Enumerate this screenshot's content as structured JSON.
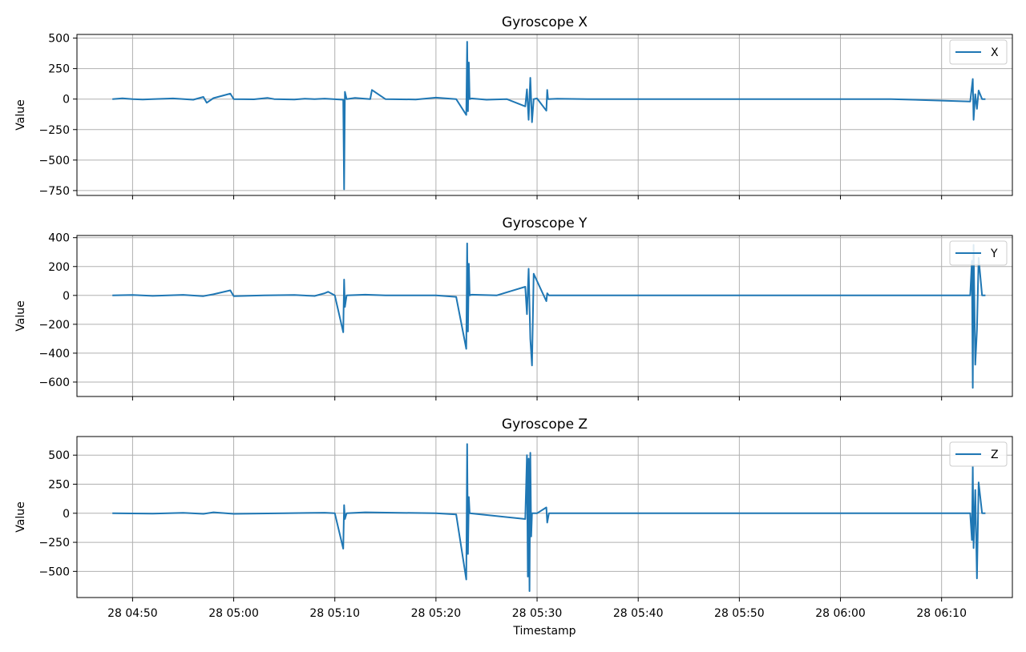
{
  "chart_data": {
    "type": "line",
    "shared_x": true,
    "xlabel": "Timestamp",
    "x_ticks": [
      "28 04:50",
      "28 05:00",
      "28 05:10",
      "28 05:20",
      "28 05:30",
      "28 05:40",
      "28 05:50",
      "28 06:00",
      "28 06:10"
    ],
    "xlim": [
      "04:44:30",
      "06:17:00"
    ],
    "grid": true,
    "line_color": "#1f77b4",
    "legend_position": "upper right",
    "panels": [
      {
        "title": "Gyroscope X",
        "ylabel": "Value",
        "ylim": [
          -790,
          530
        ],
        "y_ticks": [
          500,
          250,
          0,
          -250,
          -500,
          -750
        ],
        "y_tick_labels": [
          "500",
          "250",
          "0",
          "−250",
          "−500",
          "−750"
        ],
        "series": [
          {
            "name": "X",
            "x": [
              "04:48:00",
              "04:49:00",
              "04:50:00",
              "04:51:00",
              "04:52:00",
              "04:54:00",
              "04:56:00",
              "04:57:00",
              "04:57:20",
              "04:58:00",
              "04:59:40",
              "05:00:00",
              "05:02:00",
              "05:03:20",
              "05:04:00",
              "05:06:00",
              "05:07:00",
              "05:08:00",
              "05:09:00",
              "05:10:50",
              "05:10:55",
              "05:11:00",
              "05:11:10",
              "05:12:00",
              "05:13:30",
              "05:13:40",
              "05:15:00",
              "05:18:00",
              "05:20:00",
              "05:22:00",
              "05:23:00",
              "05:23:05",
              "05:23:10",
              "05:23:15",
              "05:23:20",
              "05:23:30",
              "05:25:00",
              "05:27:00",
              "05:28:50",
              "05:29:00",
              "05:29:10",
              "05:29:20",
              "05:29:30",
              "05:29:40",
              "05:30:00",
              "05:30:55",
              "05:31:00",
              "05:31:05",
              "05:32:00",
              "05:35:00",
              "05:45:00",
              "05:55:00",
              "06:05:00",
              "06:12:50",
              "06:13:05",
              "06:13:10",
              "06:13:20",
              "06:13:30",
              "06:13:40",
              "06:14:00",
              "06:14:20"
            ],
            "y": [
              0,
              6,
              0,
              -3,
              0,
              5,
              -5,
              18,
              -30,
              8,
              45,
              0,
              -2,
              10,
              0,
              -4,
              3,
              0,
              4,
              -5,
              -740,
              60,
              0,
              10,
              0,
              75,
              0,
              -3,
              12,
              0,
              -130,
              470,
              -100,
              300,
              0,
              5,
              -5,
              0,
              -60,
              80,
              -170,
              175,
              -190,
              0,
              5,
              -95,
              75,
              0,
              3,
              0,
              0,
              0,
              0,
              -20,
              165,
              -170,
              40,
              -80,
              70,
              0,
              0
            ]
          }
        ]
      },
      {
        "title": "Gyroscope Y",
        "ylabel": "Value",
        "ylim": [
          -700,
          415
        ],
        "y_ticks": [
          400,
          200,
          0,
          -200,
          -400,
          -600
        ],
        "y_tick_labels": [
          "400",
          "200",
          "0",
          "−200",
          "−400",
          "−600"
        ],
        "series": [
          {
            "name": "Y",
            "x": [
              "04:48:00",
              "04:50:00",
              "04:52:00",
              "04:55:00",
              "04:57:00",
              "04:58:00",
              "04:59:40",
              "05:00:00",
              "05:03:00",
              "05:06:00",
              "05:08:00",
              "05:09:00",
              "05:09:20",
              "05:10:00",
              "05:10:50",
              "05:10:55",
              "05:11:00",
              "05:11:10",
              "05:13:00",
              "05:15:00",
              "05:20:00",
              "05:22:00",
              "05:23:00",
              "05:23:05",
              "05:23:10",
              "05:23:15",
              "05:23:20",
              "05:23:30",
              "05:26:00",
              "05:28:50",
              "05:29:00",
              "05:29:10",
              "05:29:20",
              "05:29:30",
              "05:29:40",
              "05:30:55",
              "05:31:00",
              "05:31:10",
              "05:35:00",
              "05:45:00",
              "05:55:00",
              "06:05:00",
              "06:12:50",
              "06:13:00",
              "06:13:05",
              "06:13:10",
              "06:13:20",
              "06:13:30",
              "06:13:40",
              "06:14:00",
              "06:14:20"
            ],
            "y": [
              0,
              3,
              -3,
              4,
              -5,
              8,
              35,
              -5,
              0,
              3,
              -4,
              15,
              25,
              0,
              -255,
              110,
              -80,
              0,
              5,
              0,
              0,
              -10,
              -370,
              360,
              -250,
              220,
              0,
              5,
              0,
              60,
              -130,
              185,
              -300,
              -485,
              150,
              -40,
              15,
              0,
              0,
              0,
              0,
              0,
              0,
              240,
              -640,
              350,
              -480,
              -240,
              260,
              0,
              0
            ]
          }
        ]
      },
      {
        "title": "Gyroscope Z",
        "ylabel": "Value",
        "ylim": [
          -725,
          660
        ],
        "y_ticks": [
          500,
          250,
          0,
          -250,
          -500
        ],
        "y_tick_labels": [
          "500",
          "250",
          "0",
          "−250",
          "−500"
        ],
        "series": [
          {
            "name": "Z",
            "x": [
              "04:48:00",
              "04:52:00",
              "04:55:00",
              "04:57:00",
              "04:58:00",
              "05:00:00",
              "05:05:00",
              "05:09:00",
              "05:10:00",
              "05:10:50",
              "05:10:55",
              "05:11:00",
              "05:11:10",
              "05:13:00",
              "05:20:00",
              "05:22:00",
              "05:23:00",
              "05:23:05",
              "05:23:10",
              "05:23:15",
              "05:23:20",
              "05:28:50",
              "05:29:00",
              "05:29:05",
              "05:29:10",
              "05:29:15",
              "05:29:20",
              "05:29:25",
              "05:29:30",
              "05:30:00",
              "05:30:55",
              "05:31:00",
              "05:31:10",
              "05:35:00",
              "05:45:00",
              "05:55:00",
              "06:05:00",
              "06:12:50",
              "06:13:00",
              "06:13:05",
              "06:13:10",
              "06:13:20",
              "06:13:30",
              "06:13:40",
              "06:14:00",
              "06:14:20"
            ],
            "y": [
              0,
              -3,
              3,
              -5,
              8,
              -5,
              0,
              5,
              0,
              -305,
              70,
              -50,
              0,
              8,
              0,
              -10,
              -570,
              595,
              -350,
              140,
              0,
              -50,
              500,
              -545,
              470,
              -670,
              520,
              -200,
              0,
              0,
              50,
              -80,
              0,
              0,
              0,
              0,
              0,
              0,
              -230,
              400,
              -300,
              200,
              -560,
              265,
              0,
              0
            ]
          }
        ]
      }
    ]
  }
}
